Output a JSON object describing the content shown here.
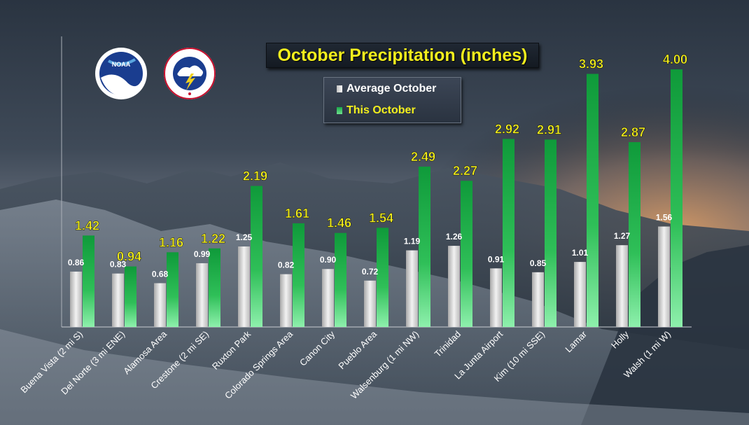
{
  "chart_data": {
    "type": "bar",
    "title": "October Precipitation (inches)",
    "categories": [
      "Buena Vista (2 mi S)",
      "Del Norte (3 mi ENE)",
      "Alamosa Area",
      "Crestone (2 mi SE)",
      "Ruxton Park",
      "Colorado Springs Area",
      "Canon City",
      "Pueblo Area",
      "Walsenburg (1 mi NW)",
      "Trinidad",
      "La Junta Airport",
      "Kim (10 mi SSE)",
      "Lamar",
      "Holly",
      "Walsh (1 mi W)"
    ],
    "series": [
      {
        "name": "Average October",
        "values": [
          0.86,
          0.83,
          0.68,
          0.99,
          1.25,
          0.82,
          0.9,
          0.72,
          1.19,
          1.26,
          0.91,
          0.85,
          1.01,
          1.27,
          1.56
        ],
        "labels": [
          "0.86",
          "0.83",
          "0.68",
          "0.99",
          "1.25",
          "0.82",
          "0.90",
          "0.72",
          "1.19",
          "1.26",
          "0.91",
          "0.85",
          "1.01",
          "1.27",
          "1.56"
        ]
      },
      {
        "name": "This October",
        "values": [
          1.42,
          0.94,
          1.16,
          1.22,
          2.19,
          1.61,
          1.46,
          1.54,
          2.49,
          2.27,
          2.92,
          2.91,
          3.93,
          2.87,
          4.0
        ],
        "labels": [
          "1.42",
          "0.94",
          "1.16",
          "1.22",
          "2.19",
          "1.61",
          "1.46",
          "1.54",
          "2.49",
          "2.27",
          "2.92",
          "2.91",
          "3.93",
          "2.87",
          "4.00"
        ]
      }
    ],
    "ylim": [
      0,
      4.4
    ],
    "xlabel": "",
    "ylabel": "",
    "legend": "top-center",
    "grid": false,
    "colors": {
      "average": "#e6e6e6",
      "this": "#1aa84a",
      "this_label": "#f3ef1d",
      "avg_label": "#ffffff"
    }
  },
  "logos": {
    "noaa_text": "NOAA",
    "nws_text": "NATIONAL WEATHER SERVICE"
  }
}
